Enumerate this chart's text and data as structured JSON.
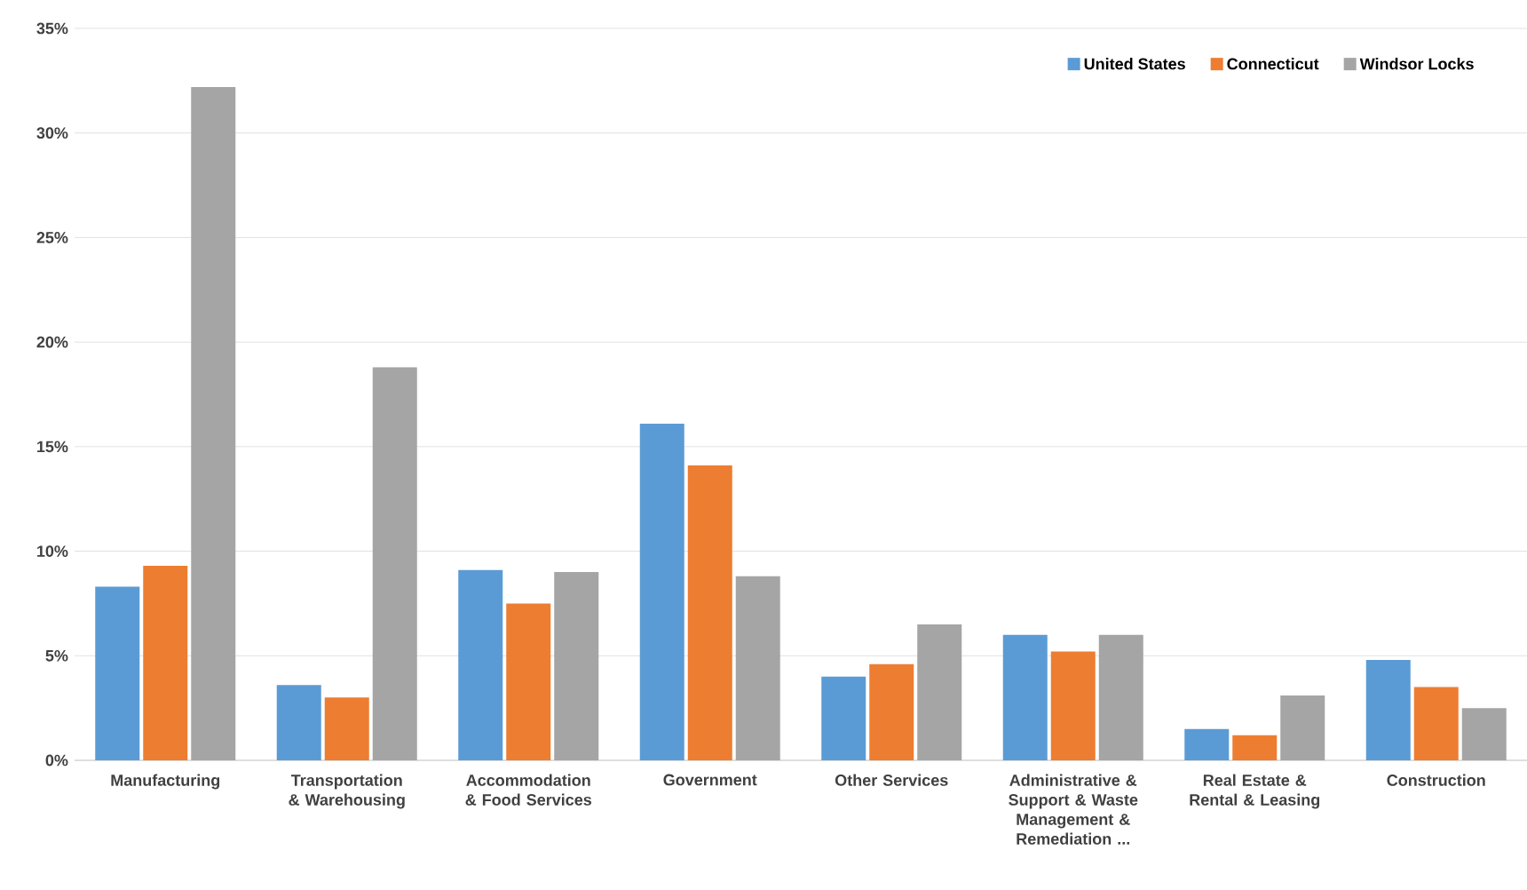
{
  "chart_data": {
    "type": "bar",
    "categories": [
      "Manufacturing",
      "Transportation & Warehousing",
      "Accommodation & Food Services",
      "Government",
      "Other Services",
      "Administrative & Support & Waste Management & Remediation ...",
      "Real Estate & Rental & Leasing",
      "Construction"
    ],
    "series": [
      {
        "name": "United States",
        "color": "#5b9bd5",
        "values": [
          8.3,
          3.6,
          9.1,
          16.1,
          4.0,
          6.0,
          1.5,
          4.8
        ]
      },
      {
        "name": "Connecticut",
        "color": "#ed7d31",
        "values": [
          9.3,
          3.0,
          7.5,
          14.1,
          4.6,
          5.2,
          1.2,
          3.5
        ]
      },
      {
        "name": "Windsor Locks",
        "color": "#a5a5a5",
        "values": [
          32.2,
          18.8,
          9.0,
          8.8,
          6.5,
          6.0,
          3.1,
          2.5
        ]
      }
    ],
    "ylim": [
      0,
      35
    ],
    "yticks": [
      {
        "value": 0,
        "label": "0%"
      },
      {
        "value": 5,
        "label": "5%"
      },
      {
        "value": 10,
        "label": "10%"
      },
      {
        "value": 15,
        "label": "15%"
      },
      {
        "value": 20,
        "label": "20%"
      },
      {
        "value": 25,
        "label": "25%"
      },
      {
        "value": 30,
        "label": "30%"
      },
      {
        "value": 35,
        "label": "35%"
      }
    ],
    "grid": "y",
    "legend": "top right"
  }
}
